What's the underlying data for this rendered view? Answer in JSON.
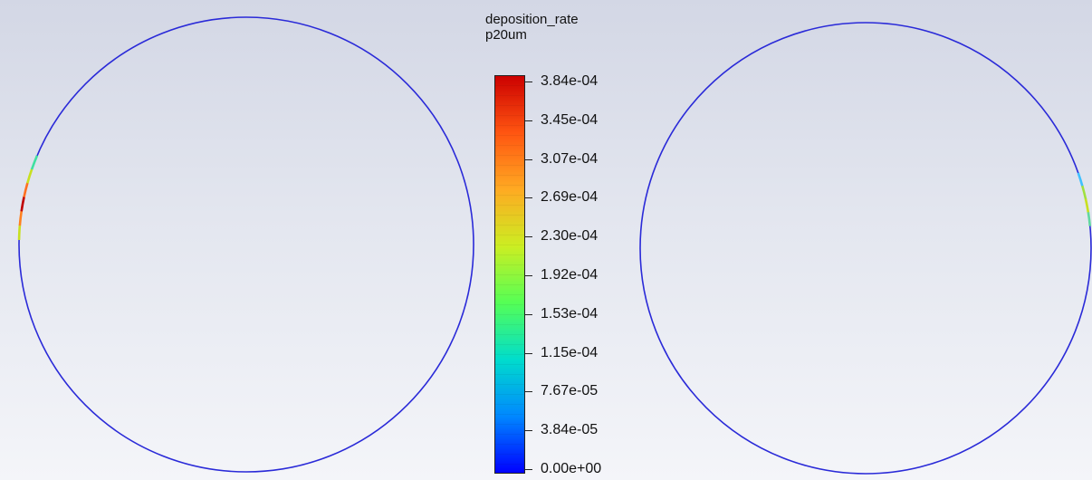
{
  "legend": {
    "variable": "deposition_rate",
    "subtitle": "p20um",
    "ticks": [
      "3.84e-04",
      "3.45e-04",
      "3.07e-04",
      "2.69e-04",
      "2.30e-04",
      "1.92e-04",
      "1.53e-04",
      "1.15e-04",
      "7.67e-05",
      "3.84e-05",
      "0.00e+00"
    ],
    "max": 0.000384,
    "min": 0,
    "colormap": [
      "#0000ff",
      "#0088ff",
      "#00ddcc",
      "#55ff55",
      "#ccee22",
      "#ffaa22",
      "#ff5511",
      "#cc0000"
    ]
  },
  "views": {
    "left": {
      "outline_color": "#2a2ad8",
      "deposition_hotspot": "left edge",
      "hotspot_colors": [
        "#40e0a0",
        "#c8e020",
        "#ff7020",
        "#c00000",
        "#ff8020",
        "#c8e020"
      ]
    },
    "right": {
      "outline_color": "#2a2ad8",
      "deposition_hotspot": "right edge",
      "hotspot_colors": [
        "#40c0ff",
        "#a0e040",
        "#c8e020",
        "#60d8a0"
      ]
    }
  }
}
